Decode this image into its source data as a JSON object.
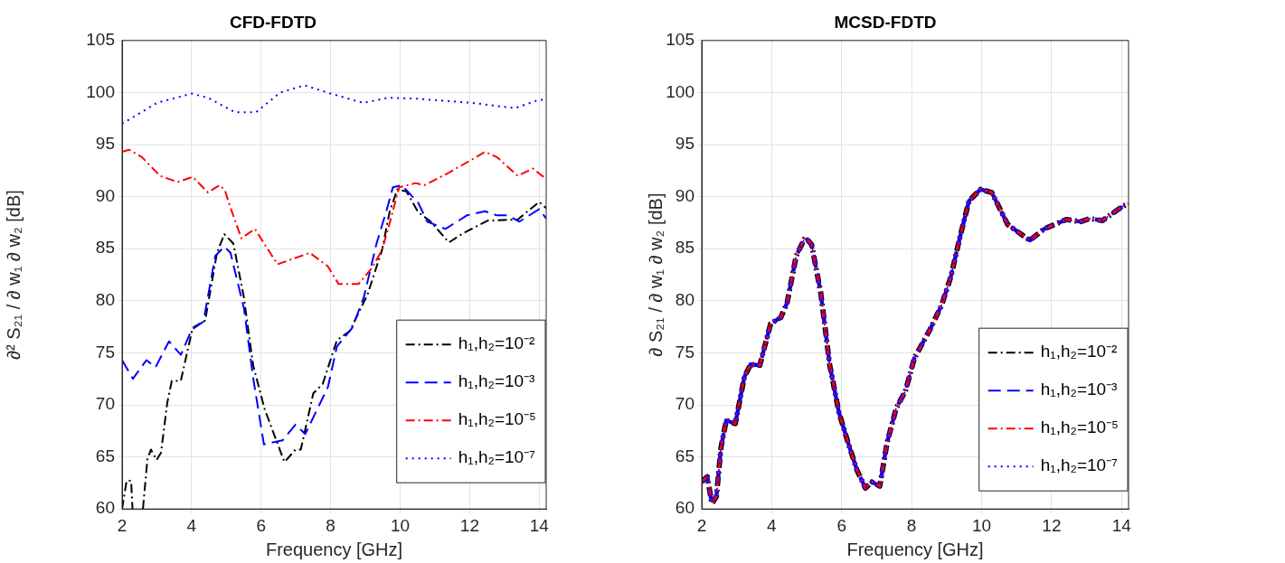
{
  "chart_data": [
    {
      "type": "line",
      "title": "CFD-FDTD",
      "xlabel": "Frequency [GHz]",
      "ylabel": "∂² S₂₁ / ∂ w₁ ∂ w₂ [dB]",
      "xlim": [
        2,
        14.2
      ],
      "xticks": [
        2,
        4,
        6,
        8,
        10,
        12,
        14
      ],
      "ylim": [
        60,
        105
      ],
      "yticks": [
        60,
        65,
        70,
        75,
        80,
        85,
        90,
        95,
        100,
        105
      ],
      "grid": true,
      "legend": "bottom right",
      "series": [
        {
          "name": "h₁,h₂=10⁻²",
          "color": "#000000",
          "line_style": "dashdot",
          "x": [
            2,
            2.13,
            2.26,
            2.3,
            2.45,
            2.6,
            2.73,
            2.83,
            2.99,
            3.12,
            3.3,
            3.43,
            3.69,
            4.03,
            4.39,
            4.73,
            4.94,
            5.2,
            5.5,
            5.77,
            6.1,
            6.67,
            6.99,
            7.14,
            7.5,
            7.77,
            8.18,
            8.55,
            9.06,
            9.48,
            9.7,
            9.92,
            10.18,
            10.52,
            10.88,
            11.4,
            11.82,
            12.52,
            13.38,
            14.0,
            14.2
          ],
          "values": [
            60,
            62.7,
            62.7,
            60,
            null,
            60,
            64.8,
            65.7,
            64.7,
            65.4,
            70.2,
            72.3,
            72.3,
            77.4,
            78.1,
            84.6,
            86.4,
            85.5,
            80.4,
            73.8,
            69.6,
            64.5,
            65.7,
            65.7,
            71.1,
            72,
            76.2,
            77.1,
            80.6,
            84.9,
            88.6,
            90.7,
            90.5,
            88.5,
            87.6,
            85.6,
            86.5,
            87.7,
            87.8,
            89.5,
            88.9
          ]
        },
        {
          "name": "h₁,h₂=10⁻³",
          "color": "#0000ff",
          "line_style": "dashed",
          "x": [
            2,
            2.31,
            2.7,
            2.96,
            3.35,
            3.69,
            4.0,
            4.34,
            4.68,
            4.94,
            5.12,
            5.51,
            5.77,
            6.08,
            6.62,
            6.99,
            7.27,
            7.92,
            8.18,
            8.62,
            8.96,
            9.32,
            9.61,
            9.79,
            10.05,
            10.52,
            10.78,
            11.3,
            11.92,
            12.44,
            12.78,
            13.1,
            13.43,
            14.0,
            14.2
          ],
          "values": [
            74.3,
            72.5,
            74.3,
            73.6,
            76.1,
            74.8,
            77.2,
            78,
            84.3,
            85.2,
            84.6,
            79.2,
            72.6,
            66.2,
            66.6,
            68.1,
            67.2,
            71.7,
            75.6,
            77.4,
            80.4,
            85.5,
            88.7,
            90.9,
            91.1,
            89.4,
            87.6,
            86.9,
            88.2,
            88.6,
            88.2,
            88.2,
            87.6,
            88.8,
            87.9
          ]
        },
        {
          "name": "h₁,h₂=10⁻⁵",
          "color": "#ff0000",
          "line_style": "dashdot",
          "x": [
            2,
            2.2,
            2.57,
            3.09,
            3.6,
            4.03,
            4.47,
            4.8,
            4.96,
            5.07,
            5.43,
            5.82,
            6.47,
            7.4,
            7.92,
            8.23,
            8.8,
            9.2,
            9.48,
            9.71,
            9.97,
            10.44,
            10.7,
            11.4,
            12.08,
            12.44,
            12.78,
            13.38,
            13.82,
            14.2
          ],
          "values": [
            94.3,
            94.5,
            93.8,
            92,
            91.4,
            91.9,
            90.4,
            91.1,
            90.6,
            89.4,
            86,
            86.9,
            83.5,
            84.6,
            83.3,
            81.6,
            81.6,
            83.2,
            84.9,
            87.6,
            90.9,
            91.3,
            91.1,
            92.3,
            93.6,
            94.3,
            93.8,
            92,
            92.7,
            91.7
          ]
        },
        {
          "name": "h₁,h₂=10⁻⁷",
          "color": "#0000ff",
          "line_style": "dotted",
          "x": [
            2,
            3.0,
            4.0,
            4.47,
            5.25,
            5.85,
            6.55,
            7.25,
            7.9,
            8.94,
            9.65,
            10.5,
            12.08,
            13.3,
            14.0,
            14.2
          ],
          "values": [
            97,
            99,
            99.9,
            99.5,
            98.1,
            98.1,
            100,
            100.7,
            100,
            99,
            99.5,
            99.4,
            99,
            98.5,
            99.3,
            99.3
          ]
        }
      ]
    },
    {
      "type": "line",
      "title": "MCSD-FDTD",
      "xlabel": "Frequency [GHz]",
      "ylabel": "∂ S₂₁ / ∂ w₁ ∂ w₂ [dB]",
      "xlim": [
        2,
        14.2
      ],
      "xticks": [
        2,
        4,
        6,
        8,
        10,
        12,
        14
      ],
      "ylim": [
        60,
        105
      ],
      "yticks": [
        60,
        65,
        70,
        75,
        80,
        85,
        90,
        95,
        100,
        105
      ],
      "grid": true,
      "legend": "bottom right",
      "x": [
        2,
        2.16,
        2.29,
        2.42,
        2.55,
        2.7,
        2.96,
        3.22,
        3.4,
        3.66,
        3.97,
        4.26,
        4.44,
        4.7,
        4.96,
        5.14,
        5.4,
        5.66,
        5.92,
        6.18,
        6.44,
        6.68,
        6.86,
        7.09,
        7.3,
        7.56,
        7.82,
        8.08,
        8.52,
        8.86,
        9.12,
        9.38,
        9.64,
        9.97,
        10.29,
        10.75,
        11.38,
        11.79,
        12.42,
        12.83,
        13.09,
        13.45,
        13.87,
        14.05,
        14.2
      ],
      "series": [
        {
          "name": "h₁,h₂=10⁻²",
          "color": "#000000",
          "line_style": "dashdot",
          "values": [
            62.6,
            63.1,
            60.5,
            61.2,
            65.9,
            68.5,
            68.2,
            72.7,
            73.9,
            73.8,
            77.8,
            78.4,
            79.8,
            84.3,
            86.1,
            85.4,
            80.8,
            73.8,
            69.3,
            66.4,
            63.7,
            62,
            62.6,
            62.2,
            66.4,
            69.7,
            71.3,
            74.5,
            77.2,
            79.6,
            82.3,
            86.1,
            89.6,
            90.7,
            90.4,
            87.3,
            85.8,
            86.9,
            87.8,
            87.6,
            87.9,
            87.7,
            88.7,
            89.1,
            89.3
          ]
        },
        {
          "name": "h₁,h₂=10⁻³",
          "color": "#0000ff",
          "line_style": "dashed",
          "values": [
            62.6,
            63.1,
            60.5,
            61.2,
            65.9,
            68.5,
            68.2,
            72.7,
            73.9,
            73.8,
            77.8,
            78.4,
            79.8,
            84.3,
            86.1,
            85.4,
            80.8,
            73.8,
            69.3,
            66.4,
            63.7,
            62,
            62.6,
            62.2,
            66.4,
            69.7,
            71.3,
            74.5,
            77.2,
            79.6,
            82.3,
            86.1,
            89.6,
            90.7,
            90.4,
            87.3,
            85.8,
            86.9,
            87.8,
            87.6,
            87.9,
            87.7,
            88.7,
            89.1,
            89.3
          ]
        },
        {
          "name": "h₁,h₂=10⁻⁵",
          "color": "#ff0000",
          "line_style": "dashdot",
          "values": [
            62.6,
            63.1,
            60.5,
            61.2,
            65.9,
            68.5,
            68.2,
            72.7,
            73.9,
            73.8,
            77.8,
            78.4,
            79.8,
            84.3,
            86.1,
            85.4,
            80.8,
            73.8,
            69.3,
            66.4,
            63.7,
            62,
            62.6,
            62.2,
            66.4,
            69.7,
            71.3,
            74.5,
            77.2,
            79.6,
            82.3,
            86.1,
            89.6,
            90.7,
            90.4,
            87.3,
            85.8,
            86.9,
            87.8,
            87.6,
            87.9,
            87.7,
            88.7,
            89.1,
            89.3
          ]
        },
        {
          "name": "h₁,h₂=10⁻⁷",
          "color": "#0000ff",
          "line_style": "dotted",
          "values": [
            62.6,
            63.1,
            60.5,
            61.2,
            65.9,
            68.5,
            68.2,
            72.7,
            73.9,
            73.8,
            77.8,
            78.4,
            79.8,
            84.3,
            86.1,
            85.4,
            80.8,
            73.8,
            69.3,
            66.4,
            63.7,
            62,
            62.6,
            62.2,
            66.4,
            69.7,
            71.3,
            74.5,
            77.2,
            79.6,
            82.3,
            86.1,
            89.6,
            90.7,
            90.4,
            87.3,
            85.8,
            86.9,
            87.8,
            87.6,
            87.9,
            87.7,
            88.7,
            89.1,
            89.3
          ]
        }
      ]
    }
  ]
}
